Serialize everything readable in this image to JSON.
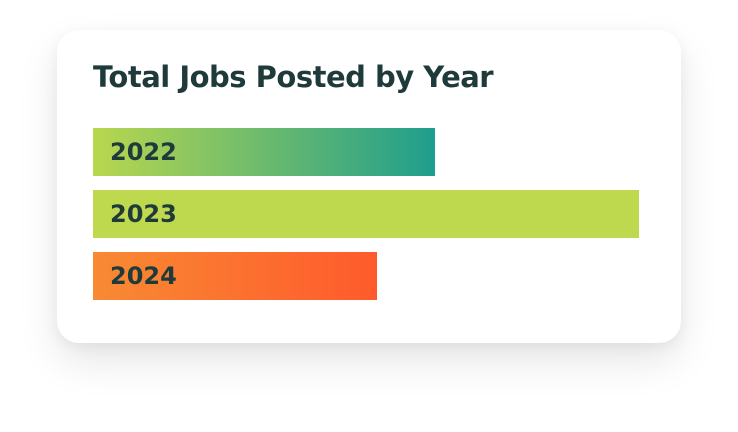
{
  "chart_data": {
    "type": "bar",
    "orientation": "horizontal",
    "title": "Total Jobs Posted by Year",
    "categories": [
      "2022",
      "2023",
      "2024"
    ],
    "values": [
      62.6,
      100,
      52
    ],
    "xlim": [
      0,
      100
    ],
    "grid": false,
    "legend": "none",
    "value_labels_shown": false,
    "colors": [
      [
        "#b9d74e",
        "#1f9e8d"
      ],
      [
        "#bfd94f",
        "#bfd94f"
      ],
      [
        "#f88a33",
        "#ff5a2c"
      ]
    ]
  }
}
